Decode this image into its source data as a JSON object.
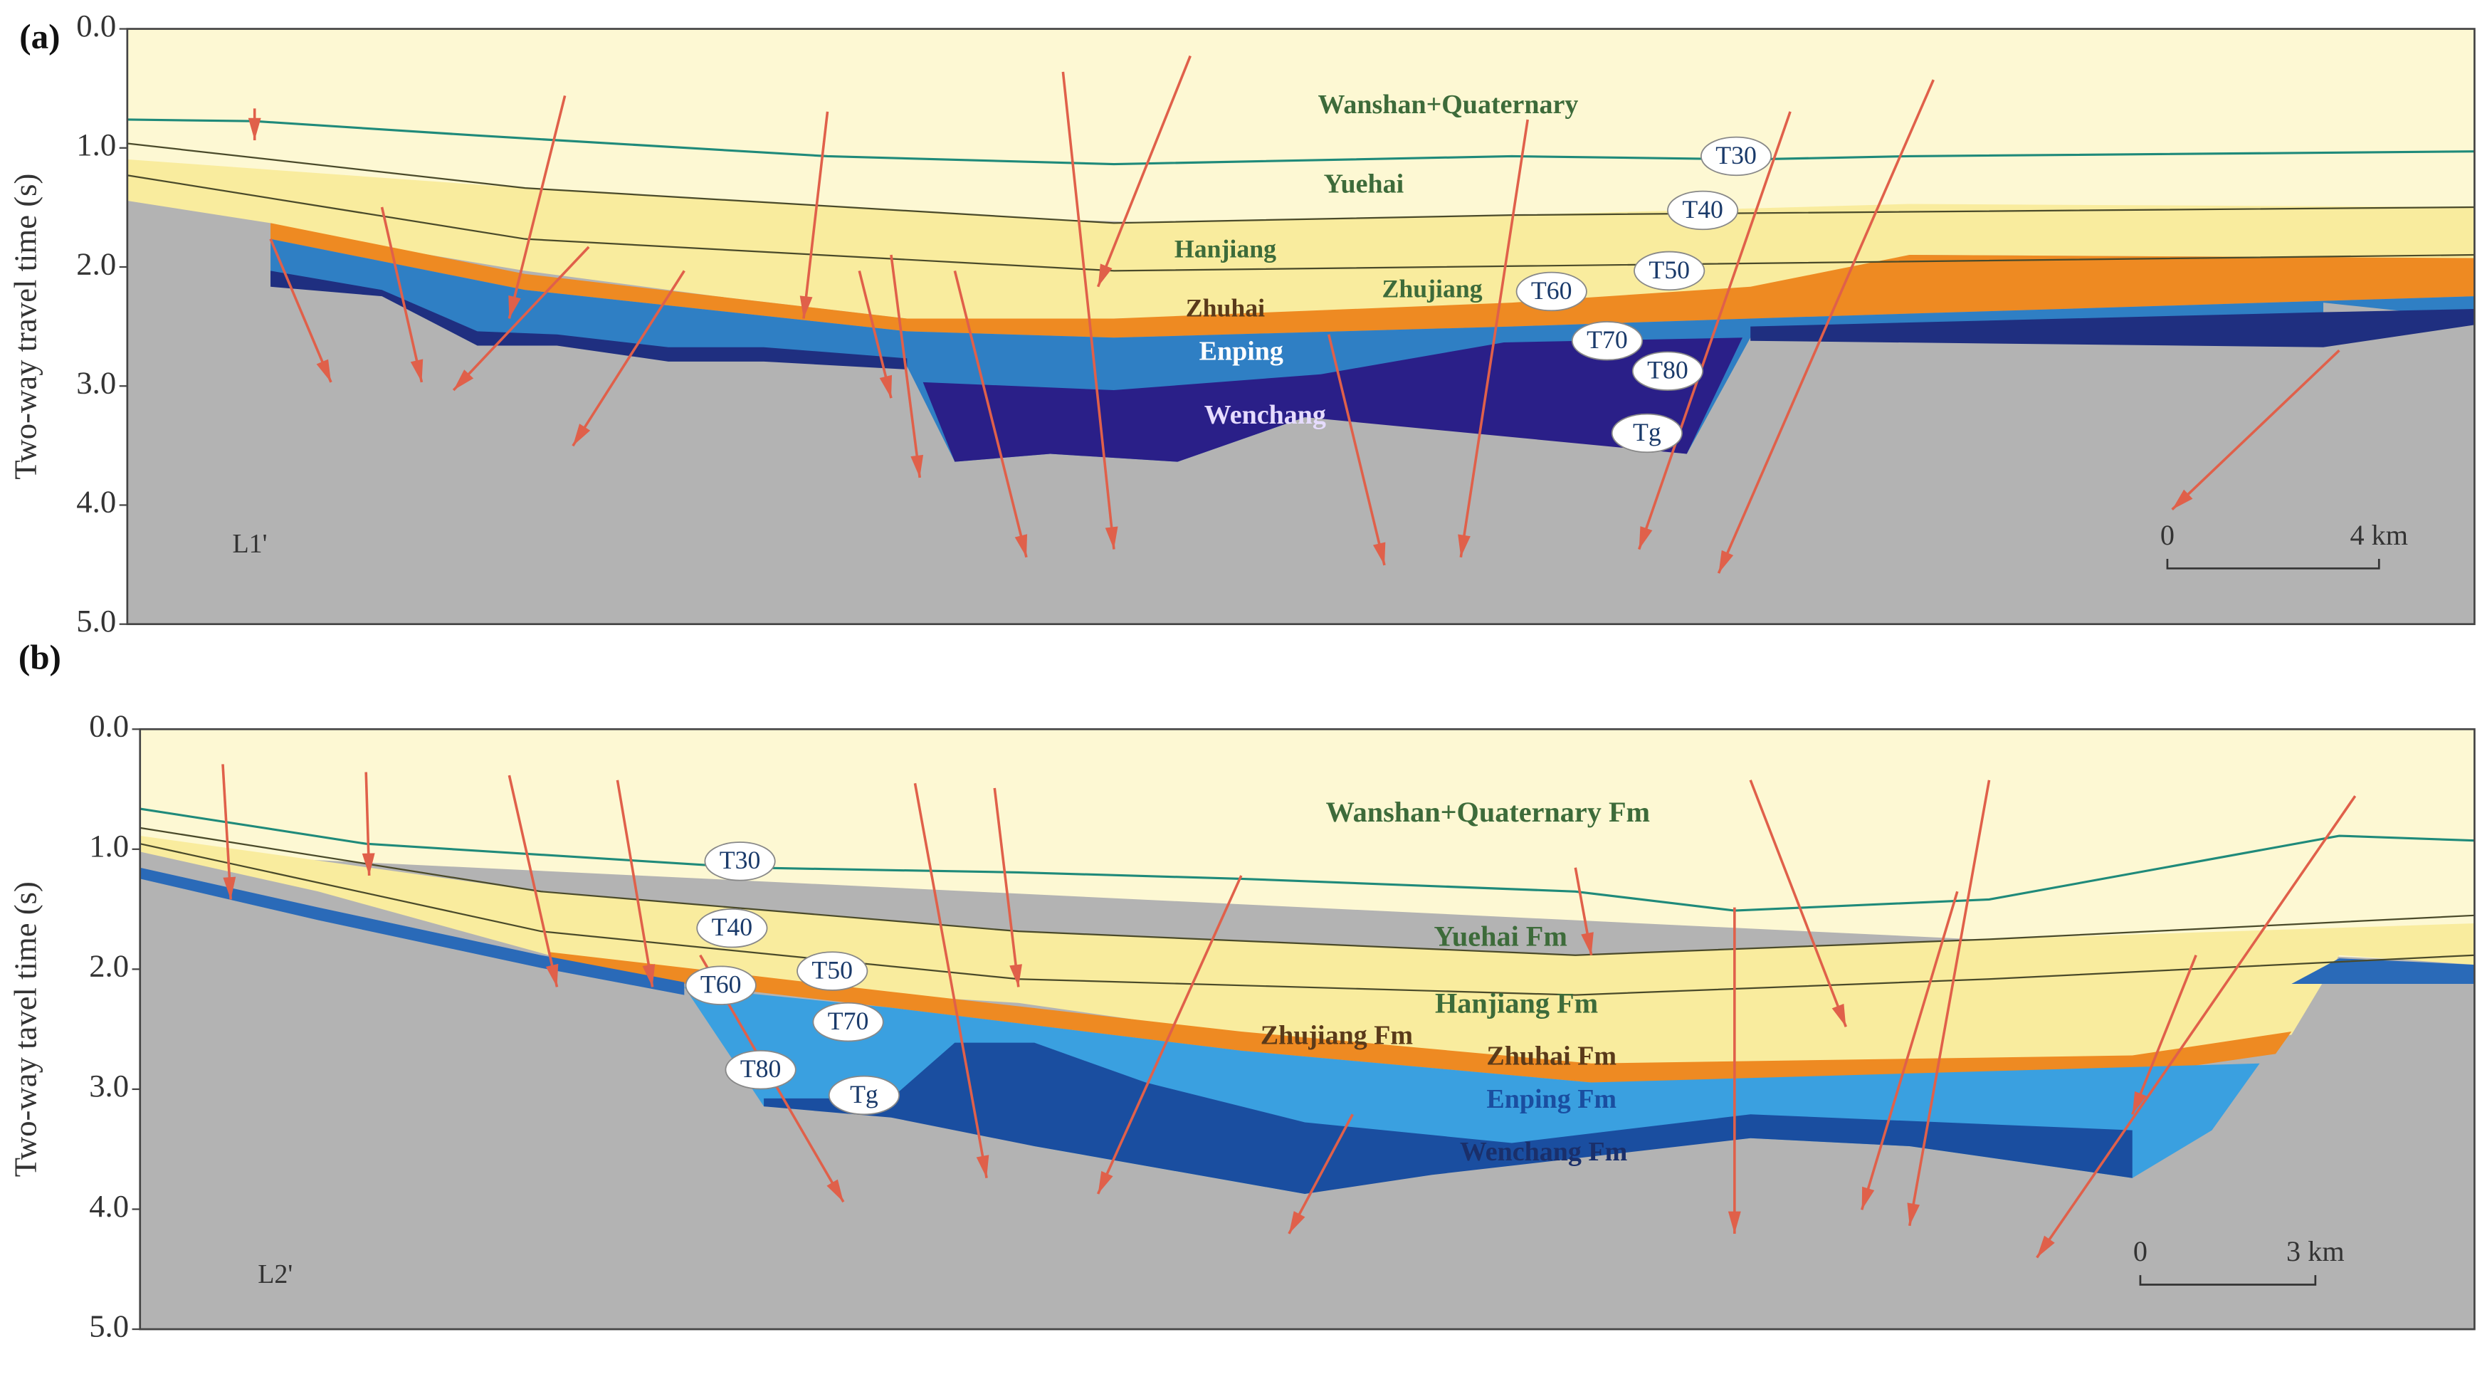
{
  "panels": [
    {
      "label": "(a)",
      "y_axis_title": "Two-way travel time (s)",
      "ylim": [
        0,
        5
      ],
      "yticks": [
        {
          "value": 0,
          "label": "0.0"
        },
        {
          "value": 1,
          "label": "1.0"
        },
        {
          "value": 2,
          "label": "2.0"
        },
        {
          "value": 3,
          "label": "3.0"
        },
        {
          "value": 4,
          "label": "4.0"
        },
        {
          "value": 5,
          "label": "5.0"
        }
      ],
      "section": "L1'",
      "formations": [
        "Wanshan+Quaternary",
        "Yuehai",
        "Hanjiang",
        "Zhuhai",
        "Zhujiang",
        "Enping",
        "Wenchang"
      ],
      "horizons": [
        "T30",
        "T40",
        "T50",
        "T60",
        "T70",
        "T80",
        "Tg"
      ],
      "scale_bar": [
        "0",
        "4 km"
      ]
    },
    {
      "label": "(b)",
      "y_axis_title": "Two-way tavel time (s)",
      "ylim": [
        0,
        5
      ],
      "yticks": [
        {
          "value": 0,
          "label": "0.0"
        },
        {
          "value": 1,
          "label": "1.0"
        },
        {
          "value": 2,
          "label": "2.0"
        },
        {
          "value": 3,
          "label": "3.0"
        },
        {
          "value": 4,
          "label": "4.0"
        },
        {
          "value": 5,
          "label": "5.0"
        }
      ],
      "section": "L2'",
      "formations": [
        "Wanshan+Quaternary Fm",
        "Yuehai Fm",
        "Hanjiang Fm",
        "Zhujiang Fm",
        "Zhuhai Fm",
        "Enping Fm",
        "Wenchang Fm"
      ],
      "horizons": [
        "T30",
        "T40",
        "T50",
        "T60",
        "T70",
        "T80",
        "Tg"
      ],
      "scale_bar": [
        "0",
        "3 km"
      ]
    }
  ]
}
